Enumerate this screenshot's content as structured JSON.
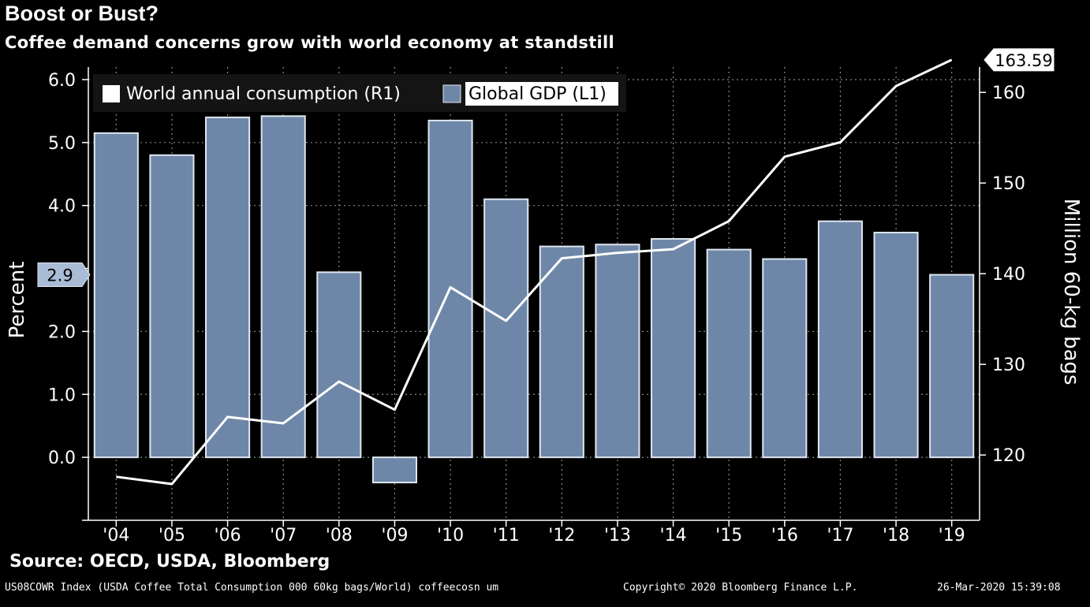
{
  "title": "Boost or Bust?",
  "subtitle": "Coffee demand concerns grow with world economy at standstill",
  "source": "Source: OECD, USDA, Bloomberg",
  "footer": {
    "index": "US08COWR Index (USDA Coffee Total Consumption 000 60kg bags/World) coffeecosn um",
    "copyright": "Copyright© 2020 Bloomberg Finance L.P.",
    "timestamp": "26-Mar-2020 15:39:08"
  },
  "colors": {
    "background": "#000000",
    "bar_fill": "#6e87a8",
    "bar_stroke": "#dfe6ef",
    "line": "#ffffff",
    "grid": "#8a8a8a",
    "legend_bg": "#141414"
  },
  "chart_data": {
    "type": "bar+line",
    "categories": [
      "'04",
      "'05",
      "'06",
      "'07",
      "'08",
      "'09",
      "'10",
      "'11",
      "'12",
      "'13",
      "'14",
      "'15",
      "'16",
      "'17",
      "'18",
      "'19"
    ],
    "series": [
      {
        "name": "Global GDP (L1)",
        "type": "bar",
        "axis": "left",
        "values": [
          5.15,
          4.8,
          5.4,
          5.42,
          2.94,
          -0.4,
          5.35,
          4.1,
          3.35,
          3.38,
          3.47,
          3.3,
          3.15,
          3.75,
          3.57,
          2.9
        ]
      },
      {
        "name": "World annual consumption  (R1)",
        "type": "line",
        "axis": "right",
        "values": [
          117.6,
          116.8,
          124.2,
          123.5,
          128.1,
          125.0,
          138.5,
          134.8,
          141.7,
          142.3,
          142.7,
          145.8,
          152.9,
          154.5,
          160.7,
          163.59
        ]
      }
    ],
    "left_axis": {
      "label": "Percent",
      "range": [
        -1.0,
        6.2
      ],
      "ticks": [
        0.0,
        1.0,
        2.0,
        4.0,
        5.0,
        6.0
      ],
      "tick_labels": [
        "0.0",
        "1.0",
        "2.0",
        "4.0",
        "5.0",
        "6.0"
      ],
      "minor_ticks": [
        -1.0,
        3.0
      ],
      "marker": {
        "value": 2.9,
        "label": "2.9"
      }
    },
    "right_axis": {
      "label": "Million 60-kg bags",
      "range": [
        112.8,
        162.8
      ],
      "ticks": [
        120,
        130,
        140,
        150,
        160
      ],
      "tick_labels": [
        "120",
        "130",
        "140",
        "150",
        "160"
      ],
      "marker": {
        "value": 163.59,
        "label": "163.59"
      }
    },
    "grid": true,
    "legend": {
      "placement": "top-left",
      "entries": [
        "World annual consumption  (R1)",
        "Global GDP (L1)"
      ]
    }
  }
}
